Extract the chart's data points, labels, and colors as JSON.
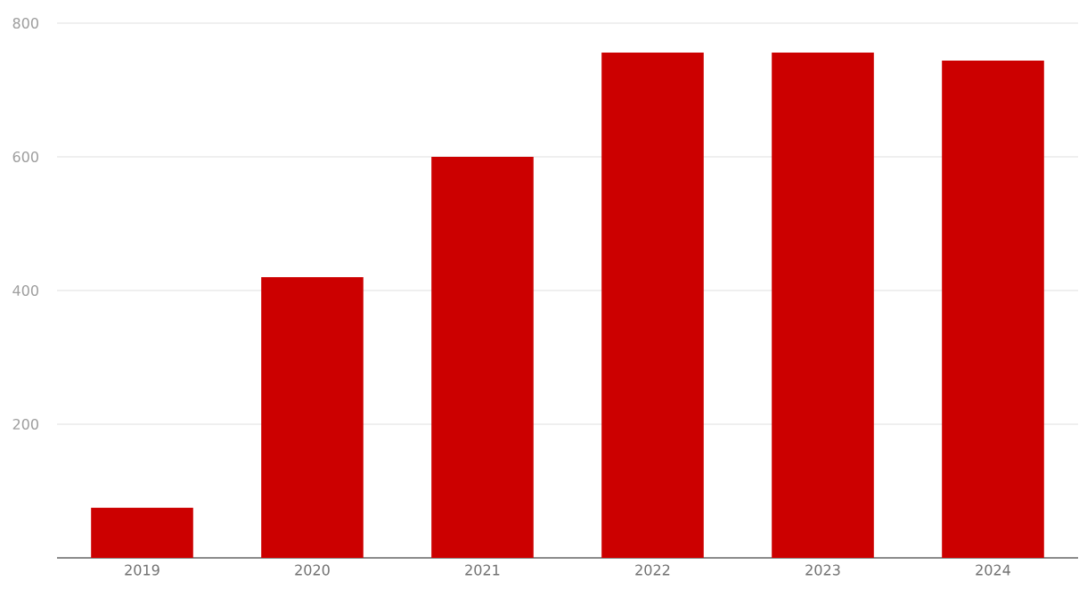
{
  "chart_data": {
    "type": "bar",
    "categories": [
      "2019",
      "2020",
      "2021",
      "2022",
      "2023",
      "2024"
    ],
    "values": [
      75,
      420,
      600,
      756,
      756,
      744
    ],
    "color": "#cc0000",
    "ylim": [
      0,
      800
    ],
    "yticks": [
      {
        "value": 0,
        "label": null
      },
      200,
      400,
      600,
      800
    ],
    "grid": "y"
  }
}
